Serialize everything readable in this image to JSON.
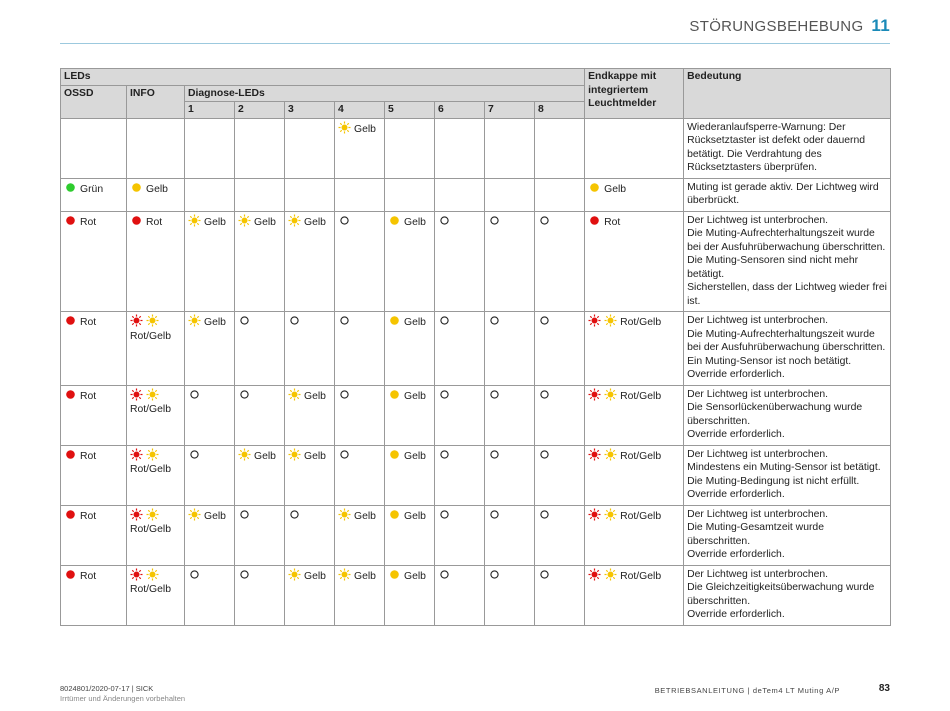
{
  "header": {
    "title": "STÖRUNGSBEHEBUNG",
    "chapter": "11"
  },
  "table": {
    "head": {
      "leds": "LEDs",
      "endcap": "Endkappe mit integriertem Leuchtmelder",
      "meaning": "Bedeutung",
      "ossd": "OSSD",
      "info": "INFO",
      "diag": "Diagnose-LEDs",
      "diag_numbers": [
        "1",
        "2",
        "3",
        "4",
        "5",
        "6",
        "7",
        "8"
      ]
    },
    "rows": [
      {
        "cells": [
          null,
          null,
          null,
          null,
          null,
          "Gelb",
          null,
          null,
          null,
          null,
          null
        ],
        "meaning": [
          "Wiederanlaufsperre-Warnung: Der Rücksetztaster ist defekt oder dauernd betätigt. Die Verdrahtung des Rücksetztasters überprüfen."
        ]
      },
      {
        "cells": [
          "Grün",
          "Gelb",
          null,
          null,
          null,
          null,
          null,
          null,
          null,
          null,
          "Gelb"
        ],
        "meaning": [
          "Muting ist gerade aktiv. Der Lichtweg wird überbrückt."
        ]
      },
      {
        "cells": [
          "Rot",
          "Rot",
          "Gelb",
          "Gelb",
          "Gelb",
          null,
          "Gelb",
          null,
          null,
          null,
          "Rot"
        ],
        "meaning": [
          "Der Lichtweg ist unterbrochen.",
          "Die Muting-Aufrechterhaltungszeit wurde bei der Ausfuhrüberwachung überschritten. Die Muting-Sensoren sind nicht mehr betätigt.",
          "Sicherstellen, dass der Lichtweg wieder frei ist."
        ]
      },
      {
        "cells": [
          "Rot",
          "Rot/Gelb",
          "Gelb",
          null,
          null,
          null,
          "Gelb",
          null,
          null,
          null,
          "Rot/Gelb"
        ],
        "meaning": [
          "Der Lichtweg ist unterbrochen.",
          "Die Muting-Aufrechterhaltungszeit wurde bei der Ausfuhrüberwachung überschritten. Ein Muting-Sensor ist noch betätigt.",
          "Override erforderlich."
        ]
      },
      {
        "cells": [
          "Rot",
          "Rot/Gelb",
          null,
          null,
          "Gelb",
          null,
          "Gelb",
          null,
          null,
          null,
          "Rot/Gelb"
        ],
        "meaning": [
          "Der Lichtweg ist unterbrochen.",
          "Die Sensorlückenüberwachung wurde überschritten.",
          "Override erforderlich."
        ]
      },
      {
        "cells": [
          "Rot",
          "Rot/Gelb",
          null,
          "Gelb",
          "Gelb",
          null,
          "Gelb",
          null,
          null,
          null,
          "Rot/Gelb"
        ],
        "meaning": [
          "Der Lichtweg ist unterbrochen.",
          "Mindestens ein Muting-Sensor ist betätigt.",
          "Die Muting-Bedingung ist nicht erfüllt.",
          "Override erforderlich."
        ]
      },
      {
        "cells": [
          "Rot",
          "Rot/Gelb",
          "Gelb",
          null,
          null,
          "Gelb",
          "Gelb",
          null,
          null,
          null,
          "Rot/Gelb"
        ],
        "meaning": [
          "Der Lichtweg ist unterbrochen.",
          "Die Muting-Gesamtzeit wurde überschritten.",
          "Override erforderlich."
        ]
      },
      {
        "cells": [
          "Rot",
          "Rot/Gelb",
          null,
          null,
          "Gelb",
          "Gelb",
          "Gelb",
          null,
          null,
          null,
          "Rot/Gelb"
        ],
        "meaning": [
          "Der Lichtweg ist unterbrochen.",
          "Die Gleichzeitigkeitsüberwachung wurde überschritten.",
          "Override erforderlich."
        ]
      }
    ]
  },
  "footer": {
    "docid": "8024801/2020-07-17 | SICK",
    "disclaimer": "Irrtümer und Änderungen vorbehalten",
    "manual": "BETRIEBSANLEITUNG | deTem4 LT Muting A/P",
    "page": "83"
  }
}
